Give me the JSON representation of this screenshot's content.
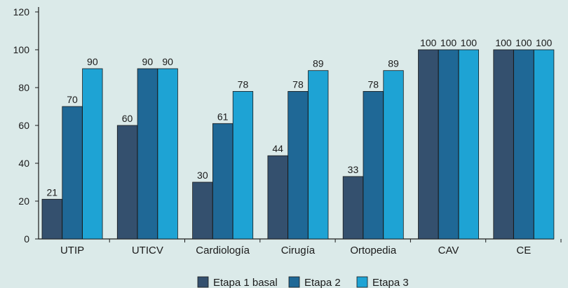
{
  "chart_data": {
    "type": "bar",
    "categories": [
      "UTIP",
      "UTICV",
      "Cardiología",
      "Cirugía",
      "Ortopedia",
      "CAV",
      "CE"
    ],
    "series": [
      {
        "name": "Etapa 1 basal",
        "color": "#34506e",
        "values": [
          21,
          60,
          30,
          44,
          33,
          100,
          100
        ]
      },
      {
        "name": "Etapa 2",
        "color": "#1f6896",
        "values": [
          70,
          90,
          61,
          78,
          78,
          100,
          100
        ]
      },
      {
        "name": "Etapa 3",
        "color": "#1ea3d4",
        "values": [
          90,
          90,
          78,
          89,
          89,
          100,
          100
        ]
      }
    ],
    "ylim": [
      0,
      120
    ],
    "yticks": [
      0,
      20,
      40,
      60,
      80,
      100,
      120
    ],
    "data_labels": true,
    "legend_position": "bottom-center",
    "gridlines": false
  }
}
